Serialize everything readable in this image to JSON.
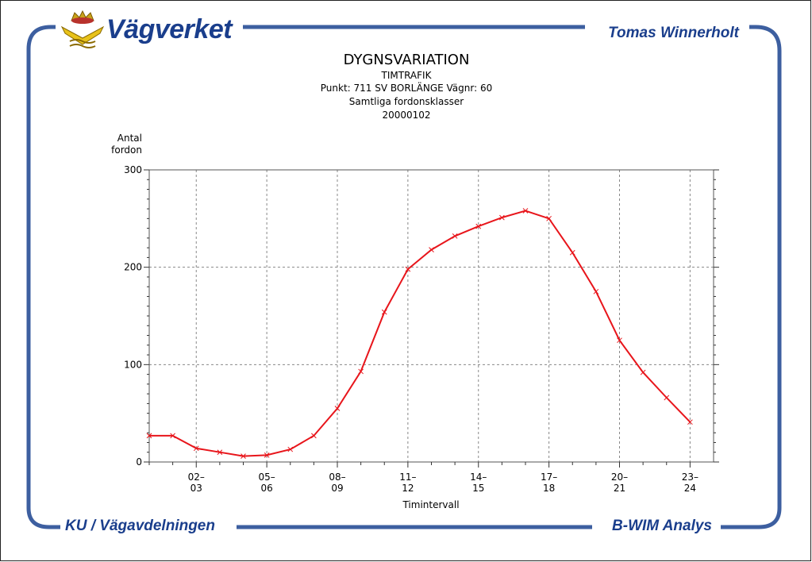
{
  "slide": {
    "brand": "Vägverket",
    "author": "Tomas Winnerholt",
    "footer_left": "KU / Vägavdelningen",
    "footer_right": "B-WIM Analys",
    "accent": "#1a3e8c",
    "frame_color": "#3d5fa0"
  },
  "chart_data": {
    "type": "line",
    "title": "DYGNSVARIATION",
    "subtitle_lines": [
      "TIMTRAFIK",
      "Punkt: 711 SV BORLÄNGE   Vägnr: 60",
      "Samtliga fordonsklasser",
      "20000102"
    ],
    "ylabel_lines": [
      "Antal",
      "fordon"
    ],
    "xlabel": "Timintervall",
    "ylim": [
      0,
      300
    ],
    "yticks": [
      0,
      100,
      200,
      300
    ],
    "xlim": [
      0.5,
      24.5
    ],
    "xtick_labels": [
      {
        "x": 2.5,
        "top": "02–",
        "bottom": "03"
      },
      {
        "x": 5.5,
        "top": "05–",
        "bottom": "06"
      },
      {
        "x": 8.5,
        "top": "08–",
        "bottom": "09"
      },
      {
        "x": 11.5,
        "top": "11–",
        "bottom": "12"
      },
      {
        "x": 14.5,
        "top": "14–",
        "bottom": "15"
      },
      {
        "x": 17.5,
        "top": "17–",
        "bottom": "18"
      },
      {
        "x": 20.5,
        "top": "20–",
        "bottom": "21"
      },
      {
        "x": 23.5,
        "top": "23–",
        "bottom": "24"
      }
    ],
    "grid": true,
    "series": [
      {
        "color": "#e8151b",
        "x": [
          0.5,
          1.5,
          2.5,
          3.5,
          4.5,
          5.5,
          6.5,
          7.5,
          8.5,
          9.5,
          10.5,
          11.5,
          12.5,
          13.5,
          14.5,
          15.5,
          16.5,
          17.5,
          18.5,
          19.5,
          20.5,
          21.5,
          22.5,
          23.5
        ],
        "values": [
          27,
          27,
          14,
          10,
          6,
          7,
          13,
          27,
          55,
          93,
          154,
          198,
          218,
          232,
          242,
          251,
          258,
          250,
          215,
          175,
          125,
          92,
          66,
          41
        ]
      }
    ]
  }
}
